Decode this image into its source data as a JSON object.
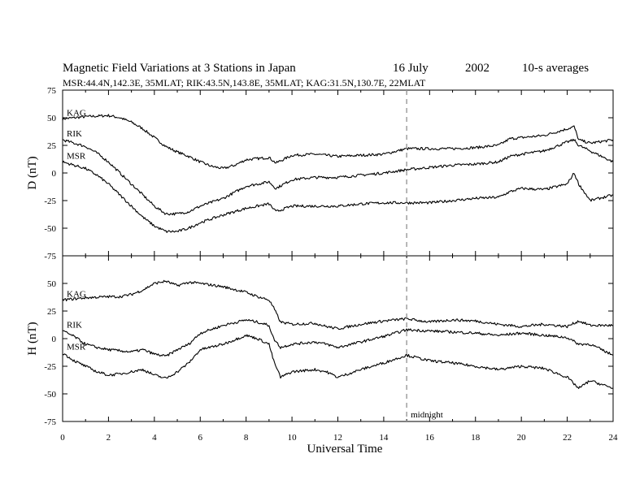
{
  "title": {
    "main": "Magnetic Field Variations at 3 Stations in Japan",
    "date": "16 July",
    "year": "2002",
    "avg": "10-s averages",
    "stations": "MSR:44.4N,142.3E, 35MLAT;  RIK:43.5N,143.8E, 35MLAT;  KAG:31.5N,130.7E, 22MLAT"
  },
  "chart_data": {
    "type": "line",
    "xlabel": "Universal Time",
    "xlim": [
      0,
      24
    ],
    "xticks": [
      "0",
      "2",
      "4",
      "6",
      "8",
      "10",
      "12",
      "14",
      "16",
      "18",
      "20",
      "22",
      "24"
    ],
    "marker": {
      "x": 15,
      "label": "midnight"
    },
    "panels": [
      {
        "ylabel": "D (nT)",
        "ylim": [
          -75,
          75
        ],
        "yticks": [
          "75",
          "50",
          "25",
          "0",
          "-25",
          "-50",
          "-75"
        ],
        "series": [
          {
            "name": "KAG",
            "x": [
              0,
              1,
              2,
              2.5,
              3,
              3.5,
              4,
              4.5,
              5,
              5.5,
              6,
              6.5,
              7,
              7.5,
              8,
              9,
              9.3,
              10,
              11,
              12,
              13,
              14,
              15,
              16,
              17,
              18,
              19,
              19.5,
              20,
              21,
              22,
              22.3,
              22.5,
              23,
              24
            ],
            "values": [
              49,
              51,
              52,
              50,
              46,
              40,
              32,
              24,
              19,
              15,
              10,
              6,
              4,
              7,
              12,
              14,
              9,
              16,
              17,
              15,
              16,
              17,
              22,
              22,
              22,
              23,
              25,
              31,
              32,
              34,
              40,
              42,
              30,
              27,
              30
            ]
          },
          {
            "name": "RIK",
            "x": [
              0,
              0.5,
              1,
              1.5,
              2,
              2.5,
              3,
              3.5,
              4,
              4.5,
              5,
              5.5,
              6,
              7,
              8,
              9,
              9.3,
              10,
              11,
              12,
              13,
              14,
              15,
              16,
              17,
              18,
              19,
              19.5,
              20,
              21,
              22,
              22.3,
              22.5,
              23,
              24
            ],
            "values": [
              30,
              27,
              24,
              18,
              10,
              0,
              -10,
              -20,
              -30,
              -37,
              -37,
              -35,
              -30,
              -23,
              -12,
              -8,
              -14,
              -6,
              -4,
              -4,
              -2,
              0,
              3,
              5,
              7,
              8,
              10,
              15,
              17,
              20,
              28,
              30,
              25,
              20,
              10
            ]
          },
          {
            "name": "MSR",
            "x": [
              0,
              0.5,
              1,
              1.5,
              2,
              2.5,
              3,
              3.5,
              4,
              4.5,
              5,
              5.5,
              6,
              7,
              8,
              9,
              9.3,
              10,
              11,
              12,
              13,
              14,
              15,
              16,
              17,
              18,
              19,
              19.5,
              20,
              21,
              22,
              22.3,
              22.5,
              23,
              24
            ],
            "values": [
              10,
              7,
              4,
              -2,
              -10,
              -20,
              -30,
              -40,
              -48,
              -53,
              -53,
              -50,
              -45,
              -38,
              -32,
              -28,
              -35,
              -30,
              -30,
              -30,
              -28,
              -27,
              -27,
              -27,
              -25,
              -23,
              -22,
              -17,
              -14,
              -15,
              -10,
              0,
              -10,
              -25,
              -20
            ]
          }
        ]
      },
      {
        "ylabel": "H (nT)",
        "ylim": [
          -75,
          75
        ],
        "yticks": [
          "50",
          "25",
          "0",
          "-25",
          "-50",
          "-75"
        ],
        "series": [
          {
            "name": "KAG",
            "x": [
              0,
              1,
              2,
              2.5,
              3,
              3.5,
              4,
              4.5,
              5,
              5.5,
              6,
              7,
              8,
              8.5,
              9,
              9.2,
              9.5,
              10,
              11,
              11.5,
              12,
              13,
              14,
              15,
              16,
              17,
              18,
              19,
              20,
              21,
              22,
              22.5,
              23,
              24
            ],
            "values": [
              35,
              37,
              38,
              38,
              40,
              44,
              50,
              52,
              48,
              51,
              50,
              47,
              42,
              38,
              35,
              28,
              15,
              13,
              14,
              11,
              9,
              13,
              16,
              18,
              15,
              17,
              16,
              13,
              11,
              13,
              11,
              16,
              12,
              12
            ]
          },
          {
            "name": "RIK",
            "x": [
              0,
              0.5,
              1,
              1.5,
              2,
              2.5,
              3,
              3.5,
              4,
              4.5,
              5,
              5.5,
              6,
              7,
              8,
              8.5,
              9,
              9.2,
              9.5,
              10,
              11,
              11.5,
              12,
              13,
              14,
              15,
              16,
              17,
              18,
              19,
              20,
              21,
              22,
              22.5,
              23,
              24
            ],
            "values": [
              7,
              2,
              -5,
              -8,
              -10,
              -11,
              -12,
              -10,
              -14,
              -16,
              -10,
              -5,
              5,
              12,
              17,
              15,
              12,
              0,
              -8,
              -5,
              -3,
              -5,
              -8,
              -3,
              2,
              8,
              7,
              6,
              5,
              3,
              5,
              3,
              1,
              -5,
              -5,
              -15
            ]
          },
          {
            "name": "MSR",
            "x": [
              0,
              0.5,
              1,
              1.5,
              2,
              2.5,
              3,
              3.5,
              4,
              4.5,
              5,
              5.5,
              6,
              7,
              8,
              8.5,
              9,
              9.2,
              9.5,
              10,
              11,
              11.5,
              12,
              13,
              14,
              15,
              16,
              17,
              18,
              19,
              20,
              21,
              22,
              22.5,
              23,
              24
            ],
            "values": [
              -13,
              -20,
              -25,
              -30,
              -33,
              -32,
              -30,
              -28,
              -33,
              -36,
              -30,
              -22,
              -10,
              -5,
              3,
              0,
              -5,
              -20,
              -35,
              -30,
              -28,
              -30,
              -35,
              -28,
              -22,
              -15,
              -20,
              -22,
              -25,
              -28,
              -25,
              -27,
              -35,
              -45,
              -38,
              -45
            ]
          }
        ]
      }
    ]
  }
}
